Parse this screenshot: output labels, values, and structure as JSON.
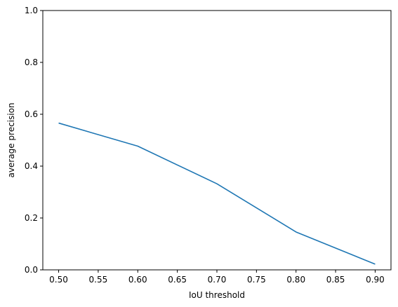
{
  "chart_data": {
    "type": "line",
    "title": "",
    "xlabel": "IoU threshold",
    "ylabel": "average precision",
    "xlim": [
      0.48,
      0.92
    ],
    "ylim": [
      0.0,
      1.0
    ],
    "xticks": [
      "0.50",
      "0.55",
      "0.60",
      "0.65",
      "0.70",
      "0.75",
      "0.80",
      "0.85",
      "0.90"
    ],
    "yticks": [
      "0.0",
      "0.2",
      "0.4",
      "0.6",
      "0.8",
      "1.0"
    ],
    "grid": false,
    "series": [
      {
        "color": "#1f77b4",
        "x": [
          0.5,
          0.6,
          0.7,
          0.8,
          0.9
        ],
        "y": [
          0.566,
          0.477,
          0.332,
          0.146,
          0.022
        ]
      }
    ]
  }
}
